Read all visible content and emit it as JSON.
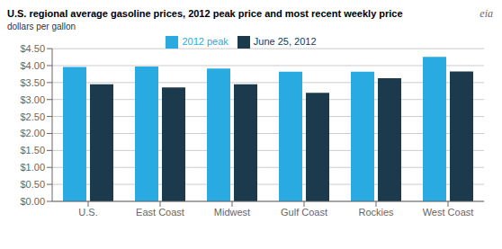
{
  "chart_data": {
    "type": "bar",
    "title": "U.S. regional average gasoline prices, 2012 peak price and most recent weekly price",
    "subtitle": "dollars per gallon",
    "annotations": [
      "eia"
    ],
    "categories": [
      "U.S.",
      "East Coast",
      "Midwest",
      "Gulf Coast",
      "Rockies",
      "West Coast"
    ],
    "series": [
      {
        "name": "2012 peak",
        "color": "#29ABE2",
        "values": [
          3.96,
          3.97,
          3.91,
          3.82,
          3.82,
          4.26
        ]
      },
      {
        "name": "June 25, 2012",
        "color": "#1B3A4B",
        "values": [
          3.45,
          3.36,
          3.45,
          3.2,
          3.63,
          3.83
        ]
      }
    ],
    "ylim": [
      0,
      4.5
    ],
    "yticks": [
      {
        "value": 0.0,
        "label": "$0.00"
      },
      {
        "value": 0.5,
        "label": "$0.50"
      },
      {
        "value": 1.0,
        "label": "$1.00"
      },
      {
        "value": 1.5,
        "label": "$1.50"
      },
      {
        "value": 2.0,
        "label": "$2.00"
      },
      {
        "value": 2.5,
        "label": "$2.50"
      },
      {
        "value": 3.0,
        "label": "$3.00"
      },
      {
        "value": 3.5,
        "label": "$3.50"
      },
      {
        "value": 4.0,
        "label": "$4.00"
      },
      {
        "value": 4.5,
        "label": "$4.50"
      }
    ],
    "grid": true,
    "legend": "top"
  }
}
